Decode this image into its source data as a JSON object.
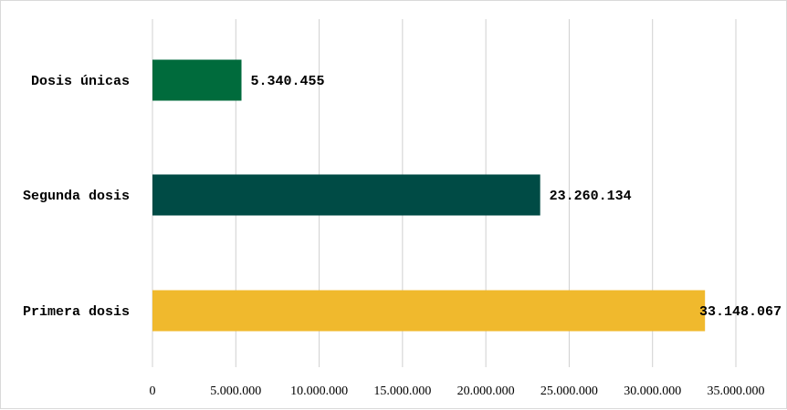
{
  "chart_data": {
    "type": "bar",
    "orientation": "horizontal",
    "categories": [
      "Dosis únicas",
      "Segunda dosis",
      "Primera dosis"
    ],
    "values": [
      5340455,
      23260134,
      33148067
    ],
    "value_labels": [
      "5.340.455",
      "23.260.134",
      "33.148.067"
    ],
    "colors": [
      "#006b3c",
      "#004b45",
      "#f0b92d"
    ],
    "xlim": [
      0,
      35000000
    ],
    "x_ticks": [
      0,
      5000000,
      10000000,
      15000000,
      20000000,
      25000000,
      30000000,
      35000000
    ],
    "x_tick_labels": [
      "0",
      "5.000.000",
      "10.000.000",
      "15.000.000",
      "20.000.000",
      "25.000.000",
      "30.000.000",
      "35.000.000"
    ],
    "grid": "vertical",
    "legend": "none"
  }
}
